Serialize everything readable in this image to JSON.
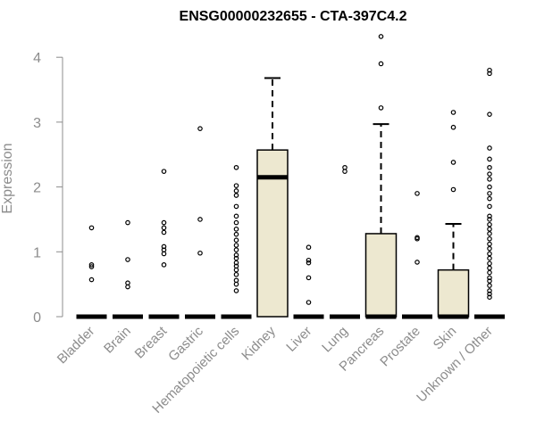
{
  "chart_data": {
    "type": "boxplot",
    "title": "ENSG00000232655 - CTA-397C4.2",
    "xlabel": "",
    "ylabel": "Expression",
    "ylim": [
      0,
      4.3
    ],
    "yticks": [
      0,
      1,
      2,
      3,
      4
    ],
    "grid": false,
    "box_color": "#ede8d0",
    "categories": [
      "Bladder",
      "Brain",
      "Breast",
      "Gastric",
      "Hematopoietic cells",
      "Kidney",
      "Liver",
      "Lung",
      "Pancreas",
      "Prostate",
      "Skin",
      "Unknown / Other"
    ],
    "boxes": [
      {
        "category": "Bladder",
        "q1": 0,
        "median": 0,
        "q3": 0,
        "whisker_low": 0,
        "whisker_high": 0,
        "outliers": [
          0.57,
          0.77,
          0.8,
          1.37
        ]
      },
      {
        "category": "Brain",
        "q1": 0,
        "median": 0,
        "q3": 0,
        "whisker_low": 0,
        "whisker_high": 0,
        "outliers": [
          0.46,
          0.52,
          0.88,
          1.45
        ]
      },
      {
        "category": "Breast",
        "q1": 0,
        "median": 0,
        "q3": 0,
        "whisker_low": 0,
        "whisker_high": 0,
        "outliers": [
          0.8,
          0.97,
          1.03,
          1.08,
          1.3,
          1.37,
          1.45,
          2.24
        ]
      },
      {
        "category": "Gastric",
        "q1": 0,
        "median": 0,
        "q3": 0,
        "whisker_low": 0,
        "whisker_high": 0,
        "outliers": [
          0.98,
          1.5,
          2.9
        ]
      },
      {
        "category": "Hematopoietic cells",
        "q1": 0,
        "median": 0,
        "q3": 0,
        "whisker_low": 0,
        "whisker_high": 0,
        "outliers": [
          0.4,
          0.5,
          0.56,
          0.65,
          0.72,
          0.78,
          0.83,
          0.9,
          0.95,
          1.03,
          1.1,
          1.18,
          1.27,
          1.35,
          1.45,
          1.55,
          1.7,
          1.87,
          1.94,
          2.02,
          2.3
        ]
      },
      {
        "category": "Kidney",
        "q1": 0,
        "median": 2.15,
        "q3": 2.57,
        "whisker_low": 0,
        "whisker_high": 3.68,
        "outliers": []
      },
      {
        "category": "Liver",
        "q1": 0,
        "median": 0,
        "q3": 0,
        "whisker_low": 0,
        "whisker_high": 0,
        "outliers": [
          0.22,
          0.6,
          0.83,
          0.87,
          1.07
        ]
      },
      {
        "category": "Lung",
        "q1": 0,
        "median": 0,
        "q3": 0,
        "whisker_low": 0,
        "whisker_high": 0,
        "outliers": [
          2.24,
          2.3
        ]
      },
      {
        "category": "Pancreas",
        "q1": 0,
        "median": 0,
        "q3": 1.28,
        "whisker_low": 0,
        "whisker_high": 2.97,
        "outliers": [
          3.22,
          3.9,
          4.32
        ]
      },
      {
        "category": "Prostate",
        "q1": 0,
        "median": 0,
        "q3": 0,
        "whisker_low": 0,
        "whisker_high": 0,
        "outliers": [
          0.84,
          1.2,
          1.22,
          1.9
        ]
      },
      {
        "category": "Skin",
        "q1": 0,
        "median": 0,
        "q3": 0.72,
        "whisker_low": 0,
        "whisker_high": 1.43,
        "outliers": [
          1.96,
          2.38,
          2.92,
          3.15
        ]
      },
      {
        "category": "Unknown / Other",
        "q1": 0,
        "median": 0,
        "q3": 0,
        "whisker_low": 0,
        "whisker_high": 0,
        "outliers": [
          0.3,
          0.35,
          0.4,
          0.48,
          0.55,
          0.6,
          0.68,
          0.75,
          0.82,
          0.9,
          0.97,
          1.05,
          1.12,
          1.2,
          1.28,
          1.35,
          1.42,
          1.5,
          1.55,
          1.7,
          1.82,
          1.9,
          2.0,
          2.12,
          2.2,
          2.3,
          2.43,
          2.6,
          3.12,
          3.75,
          3.8
        ]
      }
    ]
  }
}
